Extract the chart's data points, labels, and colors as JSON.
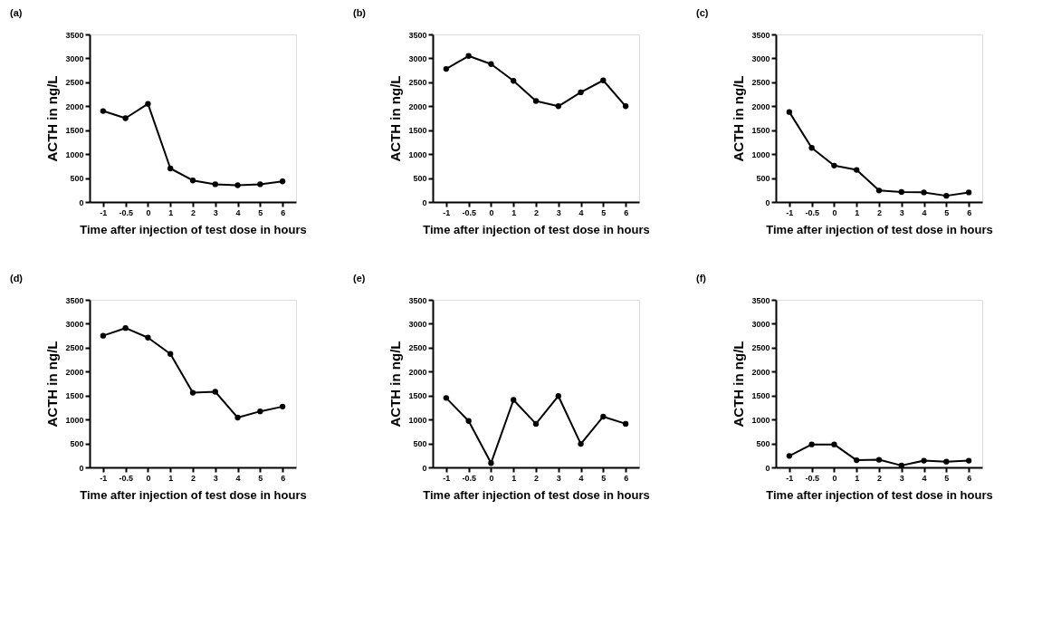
{
  "chart_data": [
    {
      "type": "line",
      "title": "(a)",
      "xlabel": "Time after injection of test dose in hours",
      "ylabel": "ACTH in ng/L",
      "categories": [
        "-1",
        "-0.5",
        "0",
        "1",
        "2",
        "3",
        "4",
        "5",
        "6"
      ],
      "marker": "circle",
      "ylim": [
        0,
        3500
      ],
      "yticks": [
        0,
        500,
        1000,
        1500,
        2000,
        2500,
        3000,
        3500
      ],
      "series": [
        {
          "color": "#000000",
          "values": [
            1900,
            1750,
            2050,
            700,
            450,
            370,
            350,
            370,
            430
          ]
        }
      ]
    },
    {
      "type": "line",
      "title": "(b)",
      "xlabel": "Time after injection of test dose in hours",
      "ylabel": "ACTH in ng/L",
      "categories": [
        "-1",
        "-0.5",
        "0",
        "1",
        "2",
        "3",
        "4",
        "5",
        "6"
      ],
      "marker": "circle",
      "ylim": [
        0,
        3500
      ],
      "yticks": [
        0,
        500,
        1000,
        1500,
        2000,
        2500,
        3000,
        3500
      ],
      "series": [
        {
          "color": "#000000",
          "values": [
            2780,
            3050,
            2880,
            2530,
            2110,
            2000,
            2290,
            2540,
            2000
          ]
        }
      ]
    },
    {
      "type": "line",
      "title": "(c)",
      "xlabel": "Time after injection of test dose in hours",
      "ylabel": "ACTH in ng/L",
      "categories": [
        "-1",
        "-0.5",
        "0",
        "1",
        "2",
        "3",
        "4",
        "5",
        "6"
      ],
      "marker": "circle",
      "ylim": [
        0,
        3500
      ],
      "yticks": [
        0,
        500,
        1000,
        1500,
        2000,
        2500,
        3000,
        3500
      ],
      "series": [
        {
          "color": "#000000",
          "values": [
            1880,
            1130,
            760,
            670,
            240,
            210,
            200,
            130,
            200
          ]
        }
      ]
    },
    {
      "type": "line",
      "title": "(d)",
      "xlabel": "Time after injection of test dose in hours",
      "ylabel": "ACTH in ng/L",
      "categories": [
        "-1",
        "-0.5",
        "0",
        "1",
        "2",
        "3",
        "4",
        "5",
        "6"
      ],
      "marker": "circle",
      "ylim": [
        0,
        3500
      ],
      "yticks": [
        0,
        500,
        1000,
        1500,
        2000,
        2500,
        3000,
        3500
      ],
      "series": [
        {
          "color": "#000000",
          "values": [
            2750,
            2910,
            2710,
            2370,
            1560,
            1580,
            1040,
            1170,
            1270
          ]
        }
      ]
    },
    {
      "type": "line",
      "title": "(e)",
      "xlabel": "Time after injection of test dose in hours",
      "ylabel": "ACTH in ng/L",
      "categories": [
        "-1",
        "-0.5",
        "0",
        "1",
        "2",
        "3",
        "4",
        "5",
        "6"
      ],
      "marker": "circle",
      "ylim": [
        0,
        3500
      ],
      "yticks": [
        0,
        500,
        1000,
        1500,
        2000,
        2500,
        3000,
        3500
      ],
      "series": [
        {
          "color": "#000000",
          "values": [
            1450,
            970,
            90,
            1410,
            910,
            1490,
            490,
            1060,
            910
          ]
        }
      ]
    },
    {
      "type": "line",
      "title": "(f)",
      "xlabel": "Time after injection of test dose in hours",
      "ylabel": "ACTH in ng/L",
      "categories": [
        "-1",
        "-0.5",
        "0",
        "1",
        "2",
        "3",
        "4",
        "5",
        "6"
      ],
      "marker": "circle",
      "ylim": [
        0,
        3500
      ],
      "yticks": [
        0,
        500,
        1000,
        1500,
        2000,
        2500,
        3000,
        3500
      ],
      "series": [
        {
          "color": "#000000",
          "values": [
            240,
            480,
            480,
            150,
            160,
            40,
            140,
            120,
            140
          ]
        }
      ]
    }
  ]
}
